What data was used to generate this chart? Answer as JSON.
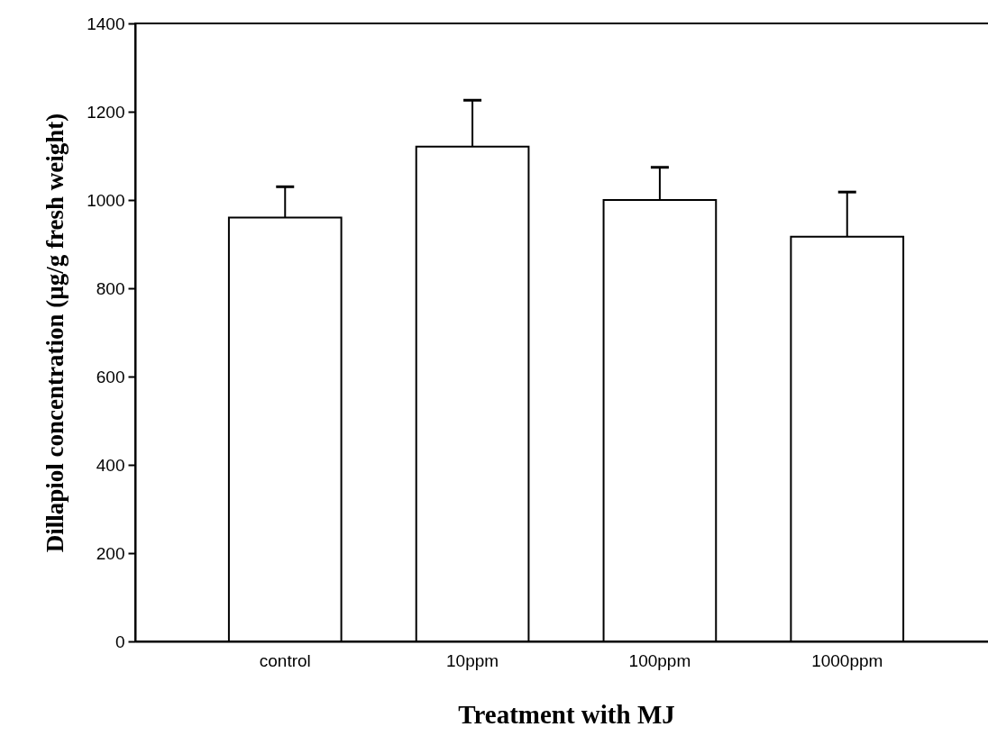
{
  "chart_data": {
    "type": "bar",
    "xlabel": "Treatment with MJ",
    "ylabel": "Dillapiol concentration (µg/g fresh weight)",
    "categories": [
      "control",
      "10ppm",
      "100ppm",
      "1000ppm"
    ],
    "values": [
      960,
      1121,
      1000,
      917
    ],
    "errors": [
      [
        960,
        1030
      ],
      [
        1121,
        1226
      ],
      [
        1000,
        1074
      ],
      [
        917,
        1018
      ]
    ],
    "color": "#ffffff",
    "ylim": [
      0,
      1400
    ],
    "yticks": [
      0,
      200,
      400,
      600,
      800,
      1000,
      1200,
      1400
    ],
    "grid": false
  }
}
